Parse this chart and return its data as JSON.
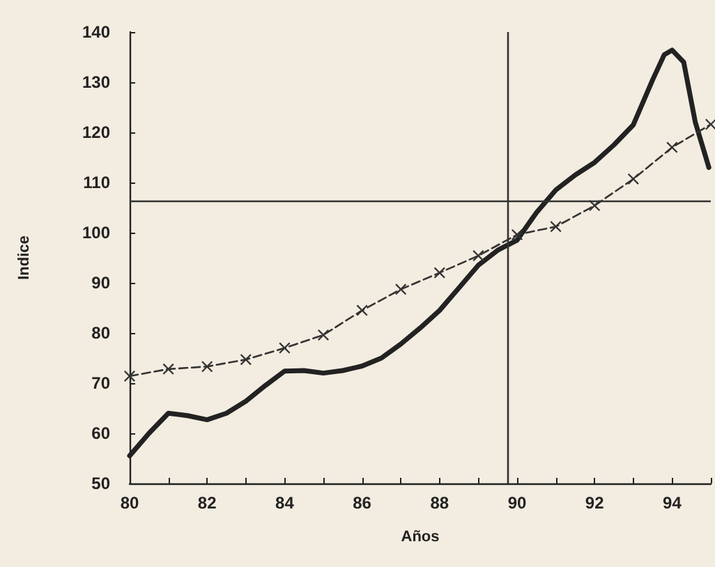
{
  "chart_data": {
    "type": "line",
    "xlabel": "Años",
    "ylabel": "Indice",
    "series": [
      {
        "color": "#222222",
        "line_style": "solid",
        "marker": "none",
        "x": [
          80,
          80.5,
          81,
          81.5,
          82,
          82.5,
          83,
          83.5,
          84,
          84.5,
          85,
          85.5,
          86,
          86.5,
          87,
          87.5,
          88,
          88.5,
          89,
          89.5,
          90,
          90.5,
          91,
          91.5,
          92,
          92.5,
          93,
          93.5,
          93.8,
          94,
          94.3,
          94.6,
          94.95
        ],
        "values": [
          55.5,
          60,
          64,
          63.5,
          62.7,
          64,
          66.4,
          69.5,
          72.4,
          72.5,
          72,
          72.5,
          73.4,
          75,
          77.8,
          81,
          84.5,
          89,
          93.5,
          96.5,
          98.5,
          104,
          108.5,
          111.5,
          114,
          117.5,
          121.5,
          130.5,
          135.5,
          136.4,
          134,
          122,
          113
        ]
      },
      {
        "color": "#333333",
        "line_style": "dashed",
        "marker": "cross",
        "x": [
          80,
          81,
          82,
          83,
          84,
          85,
          86,
          87,
          88,
          89,
          90,
          91,
          92,
          93,
          94,
          95
        ],
        "values": [
          71.4,
          72.8,
          73.3,
          74.7,
          77,
          79.6,
          84.5,
          88.7,
          92,
          95.4,
          99.6,
          101.2,
          105.4,
          110.7,
          117,
          121.6
        ]
      }
    ],
    "xlim": [
      80,
      95
    ],
    "xticks": [
      80,
      {
        "value": 81,
        "label": null
      },
      82,
      {
        "value": 83,
        "label": null
      },
      84,
      {
        "value": 85,
        "label": null
      },
      86,
      {
        "value": 87,
        "label": null
      },
      88,
      {
        "value": 89,
        "label": null
      },
      90,
      {
        "value": 91,
        "label": null
      },
      92,
      {
        "value": 93,
        "label": null
      },
      94,
      {
        "value": 95,
        "label": null
      }
    ],
    "ylim": [
      50,
      140
    ],
    "yticks": [
      50,
      60,
      70,
      80,
      90,
      100,
      110,
      120,
      130,
      140
    ],
    "ref_lines": [
      {
        "axis": "y",
        "value": 106.3,
        "label": null,
        "color": "#333333",
        "line_style": "solid"
      },
      {
        "axis": "x",
        "value": 89.75,
        "label": null,
        "color": "#333333",
        "line_style": "solid"
      }
    ],
    "grid": false
  }
}
